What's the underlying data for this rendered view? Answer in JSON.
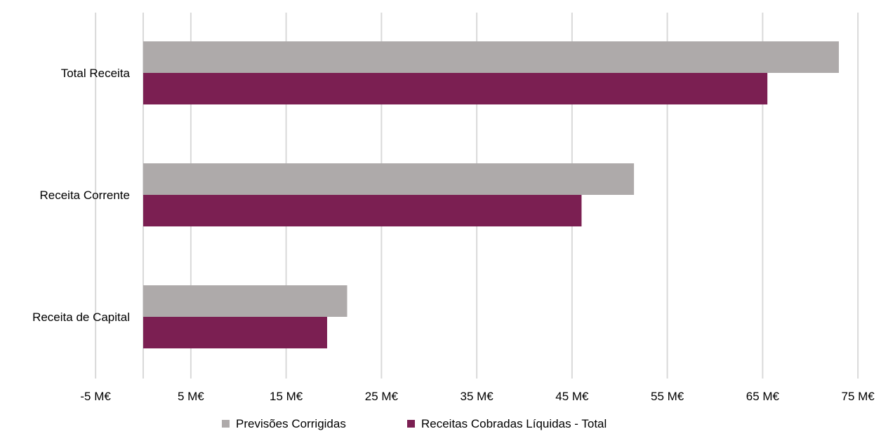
{
  "chart_data": {
    "type": "bar",
    "orientation": "horizontal",
    "categories": [
      "Total Receita",
      "Receita Corrente",
      "Receita de Capital"
    ],
    "series": [
      {
        "name": "Previsões Corrigidas",
        "color": "#aeaaaa",
        "values": [
          73.0,
          51.5,
          21.4
        ]
      },
      {
        "name": "Receitas Cobradas Líquidas - Total",
        "color": "#7b1f52",
        "values": [
          65.5,
          46.0,
          19.3
        ]
      }
    ],
    "x_ticks": [
      -5,
      5,
      15,
      25,
      35,
      45,
      55,
      65,
      75
    ],
    "x_tick_labels": [
      "-5 M€",
      "5 M€",
      "15 M€",
      "25 M€",
      "35 M€",
      "45 M€",
      "55 M€",
      "65 M€",
      "75 M€"
    ],
    "xlim": [
      -5,
      75
    ],
    "grid": true,
    "legend_position": "bottom"
  }
}
